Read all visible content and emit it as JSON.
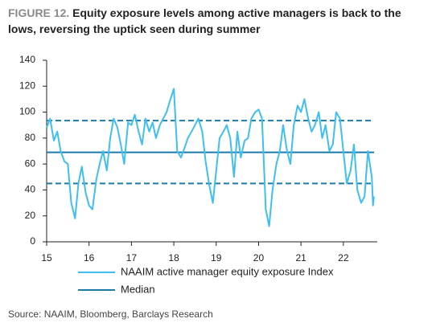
{
  "chart_data": {
    "type": "line",
    "figure_label": "FIGURE 12.",
    "title": "Equity exposure levels among active managers is back to the lows, reversing the uptick seen during summer",
    "source": "Source: NAAIM, Bloomberg, Barclays Research",
    "x": [
      15.0,
      15.08,
      15.17,
      15.25,
      15.33,
      15.42,
      15.5,
      15.58,
      15.67,
      15.75,
      15.83,
      15.92,
      16.0,
      16.08,
      16.17,
      16.25,
      16.33,
      16.42,
      16.5,
      16.58,
      16.67,
      16.75,
      16.83,
      16.92,
      17.0,
      17.08,
      17.17,
      17.25,
      17.33,
      17.42,
      17.5,
      17.58,
      17.67,
      17.75,
      17.83,
      17.92,
      18.0,
      18.08,
      18.17,
      18.25,
      18.33,
      18.42,
      18.5,
      18.58,
      18.67,
      18.75,
      18.83,
      18.92,
      19.0,
      19.08,
      19.17,
      19.25,
      19.33,
      19.42,
      19.5,
      19.58,
      19.67,
      19.75,
      19.83,
      19.92,
      20.0,
      20.08,
      20.17,
      20.25,
      20.33,
      20.42,
      20.5,
      20.58,
      20.67,
      20.75,
      20.83,
      20.92,
      21.0,
      21.08,
      21.17,
      21.25,
      21.33,
      21.42,
      21.5,
      21.58,
      21.67,
      21.75,
      21.83,
      21.92,
      22.0,
      22.08,
      22.17,
      22.25,
      22.33,
      22.42,
      22.5,
      22.58,
      22.67,
      22.7,
      22.72
    ],
    "series": [
      {
        "name": "NAAIM active manager equity exposure Index",
        "color": "#3fbff0",
        "values": [
          88,
          95,
          78,
          85,
          70,
          62,
          60,
          30,
          18,
          45,
          58,
          38,
          28,
          25,
          48,
          60,
          70,
          55,
          80,
          95,
          88,
          75,
          60,
          92,
          90,
          98,
          85,
          75,
          95,
          85,
          92,
          80,
          90,
          95,
          100,
          110,
          118,
          70,
          65,
          72,
          80,
          85,
          90,
          95,
          85,
          62,
          45,
          30,
          55,
          80,
          85,
          90,
          80,
          50,
          85,
          65,
          78,
          80,
          95,
          100,
          102,
          95,
          25,
          12,
          40,
          60,
          70,
          90,
          70,
          60,
          90,
          105,
          100,
          110,
          95,
          85,
          90,
          100,
          80,
          90,
          70,
          75,
          100,
          95,
          70,
          45,
          55,
          75,
          40,
          30,
          35,
          70,
          50,
          28,
          35
        ]
      }
    ],
    "reference_lines": [
      {
        "name": "Median",
        "value": 69,
        "color": "#1c7aa6",
        "dashed": false
      },
      {
        "value": 93.5,
        "color": "#1c7aa6",
        "dashed": true
      },
      {
        "value": 45,
        "color": "#1c7aa6",
        "dashed": true
      }
    ],
    "xlim": [
      15,
      22.8
    ],
    "xticks": [
      15,
      16,
      17,
      18,
      19,
      20,
      21,
      22
    ],
    "ylim": [
      0,
      140
    ],
    "yticks": [
      0,
      20,
      40,
      60,
      80,
      100,
      120,
      140
    ]
  }
}
